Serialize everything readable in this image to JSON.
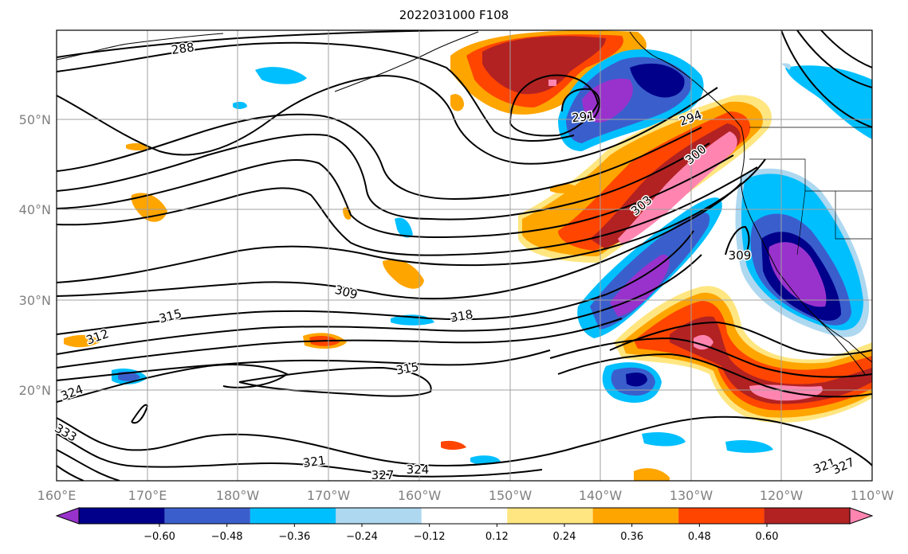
{
  "title": "2022031000 F108",
  "map": {
    "lat_labels": [
      "50°N",
      "40°N",
      "30°N",
      "20°N"
    ],
    "lon_labels": [
      "160°E",
      "170°E",
      "180°W",
      "170°W",
      "160°W",
      "150°W",
      "140°W",
      "130°W",
      "120°W",
      "110°W"
    ],
    "contour_labels": [
      "288",
      "291",
      "294",
      "300",
      "303",
      "309",
      "309",
      "312",
      "315",
      "318",
      "315",
      "324",
      "333",
      "321",
      "327",
      "324",
      "321",
      "327"
    ],
    "grid_color": "#a0a0a0"
  },
  "colorbar": {
    "tick_labels": [
      "−0.60",
      "−0.48",
      "−0.36",
      "−0.24",
      "−0.12",
      "0.12",
      "0.24",
      "0.36",
      "0.48",
      "0.60"
    ],
    "colors": [
      "#9932cc",
      "#00008b",
      "#3a5fcd",
      "#00bfff",
      "#add8f0",
      "#ffffff",
      "#ffe680",
      "#ffa500",
      "#ff4500",
      "#b22222",
      "#ff85b0"
    ]
  }
}
